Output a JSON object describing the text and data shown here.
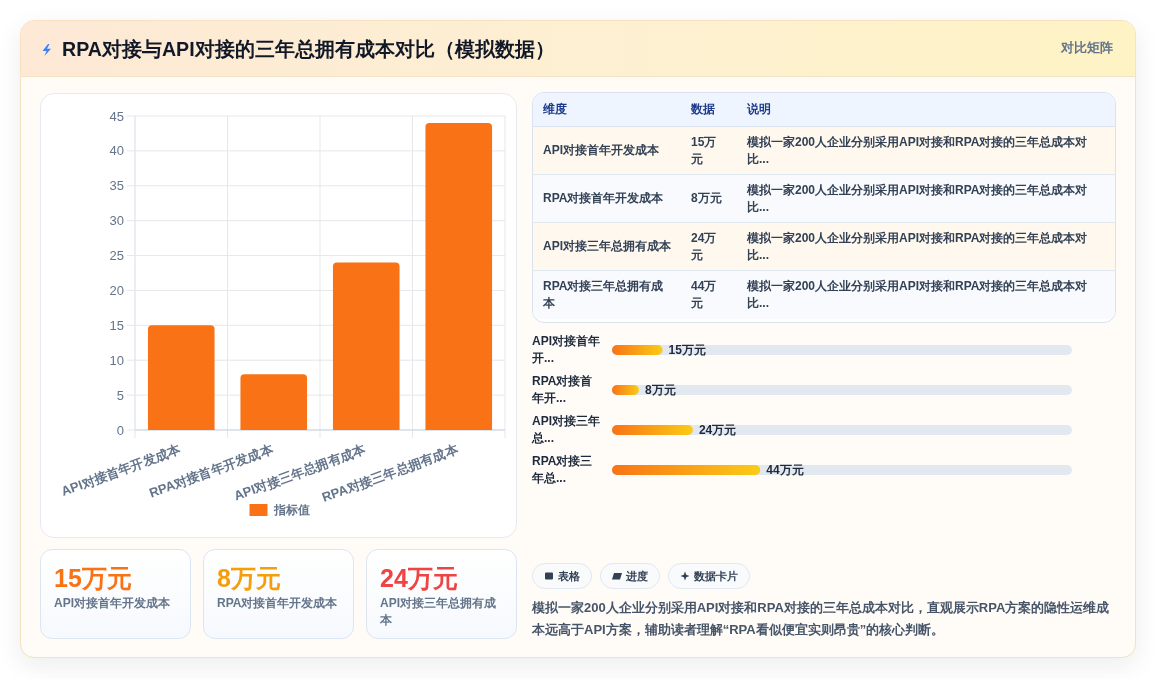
{
  "chart_data": [
    {
      "type": "other",
      "title": "RPA对接与API对接的三年总拥有成本对比（模拟数据）",
      "annotations": [
        "对比矩阵"
      ]
    },
    {
      "type": "bar",
      "categories": [
        "API对接首年开发成本",
        "RPA对接首年开发成本",
        "API对接三年总拥有成本",
        "RPA对接三年总拥有成本"
      ],
      "series": [
        {
          "name": "指标值",
          "color": "#f97316",
          "values": [
            15,
            8,
            24,
            44
          ]
        }
      ],
      "ylim": [
        0,
        45
      ],
      "yticks": [
        0,
        5,
        10,
        15,
        20,
        25,
        30,
        35,
        40,
        45
      ],
      "grid": true,
      "legend": "bottom"
    },
    {
      "type": "other",
      "categories": [
        "维度",
        "数据",
        "说明"
      ],
      "y_categories": [
        "API对接首年开发成本",
        "RPA对接首年开发成本",
        "API对接三年总拥有成本",
        "RPA对接三年总拥有成本"
      ],
      "cell_labels": [
        [
          "15万元",
          "模拟一家200人企业分别采用API对接和RPA对接的三年总成本对比..."
        ],
        [
          "8万元",
          "模拟一家200人企业分别采用API对接和RPA对接的三年总成本对比..."
        ],
        [
          "24万元",
          "模拟一家200人企业分别采用API对接和RPA对接的三年总成本对比..."
        ],
        [
          "44万元",
          "模拟一家200人企业分别采用API对接和RPA对接的三年总成本对比..."
        ]
      ]
    },
    {
      "type": "bar",
      "orientation": "horizontal",
      "categories": [
        "API对接首年开...",
        "RPA对接首年开...",
        "API对接三年总...",
        "RPA对接三年总..."
      ],
      "values": [
        15,
        8,
        24,
        44
      ],
      "value_labels": [
        "15万元",
        "8万元",
        "24万元",
        "44万元"
      ],
      "color": "#f97316"
    },
    {
      "type": "other",
      "categories": [
        "API对接首年开发成本",
        "RPA对接首年开发成本",
        "API对接三年总拥有成本"
      ],
      "value_labels": [
        "15万元",
        "8万元",
        "24万元"
      ]
    },
    {
      "type": "other",
      "annotations": [
        "表格",
        "进度",
        "数据卡片",
        "模拟一家200人企业分别采用API对接和RPA对接的三年总成本对比，直观展示RPA方案的隐性运维成本远高于API方案，辅助读者理解“RPA看似便宜实则昂贵”的核心判断。"
      ]
    }
  ]
}
